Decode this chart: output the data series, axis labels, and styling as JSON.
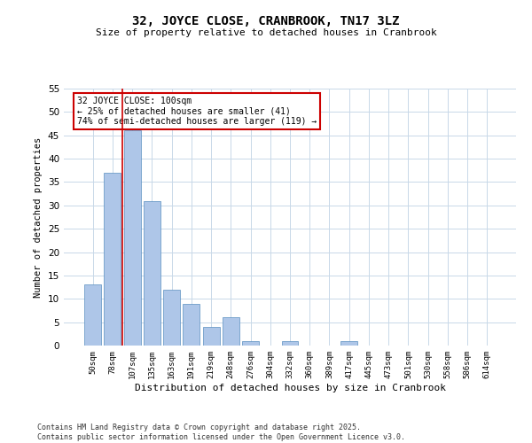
{
  "title": "32, JOYCE CLOSE, CRANBROOK, TN17 3LZ",
  "subtitle": "Size of property relative to detached houses in Cranbrook",
  "xlabel": "Distribution of detached houses by size in Cranbrook",
  "ylabel": "Number of detached properties",
  "categories": [
    "50sqm",
    "78sqm",
    "107sqm",
    "135sqm",
    "163sqm",
    "191sqm",
    "219sqm",
    "248sqm",
    "276sqm",
    "304sqm",
    "332sqm",
    "360sqm",
    "389sqm",
    "417sqm",
    "445sqm",
    "473sqm",
    "501sqm",
    "530sqm",
    "558sqm",
    "586sqm",
    "614sqm"
  ],
  "values": [
    13,
    37,
    46,
    31,
    12,
    9,
    4,
    6,
    1,
    0,
    1,
    0,
    0,
    1,
    0,
    0,
    0,
    0,
    0,
    0,
    0
  ],
  "bar_color": "#aec6e8",
  "bar_edge_color": "#5a8fc0",
  "grid_color": "#c8d8e8",
  "background_color": "#ffffff",
  "property_line_x": 1.5,
  "property_line_color": "#cc0000",
  "annotation_text": "32 JOYCE CLOSE: 100sqm\n← 25% of detached houses are smaller (41)\n74% of semi-detached houses are larger (119) →",
  "annotation_box_color": "#cc0000",
  "ylim": [
    0,
    55
  ],
  "yticks": [
    0,
    5,
    10,
    15,
    20,
    25,
    30,
    35,
    40,
    45,
    50,
    55
  ],
  "footer_line1": "Contains HM Land Registry data © Crown copyright and database right 2025.",
  "footer_line2": "Contains public sector information licensed under the Open Government Licence v3.0."
}
